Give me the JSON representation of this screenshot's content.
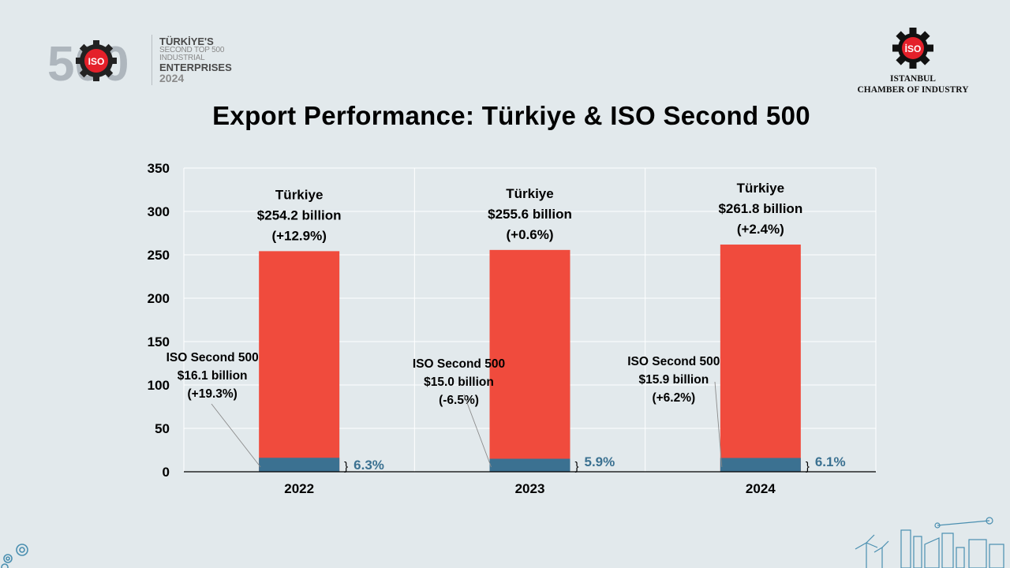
{
  "header": {
    "left_logo": {
      "number": "500",
      "badge": "ISO",
      "line1": "TÜRKİYE'S",
      "line2": "SECOND TOP 500 INDUSTRIAL",
      "line3": "ENTERPRISES",
      "line4": "2024"
    },
    "right_logo": {
      "badge": "İSO",
      "line1": "ISTANBUL",
      "line2": "CHAMBER OF INDUSTRY"
    }
  },
  "colors": {
    "turkiye": "#f04b3d",
    "iso": "#3b7191",
    "pct_text": "#3b7191",
    "background": "#e2e9ec"
  },
  "chart_data": {
    "type": "bar",
    "stacked": true,
    "title": "Export Performance: Türkiye & ISO Second 500",
    "categories": [
      "2022",
      "2023",
      "2024"
    ],
    "ylim": [
      0,
      350
    ],
    "yticks": [
      0,
      50,
      100,
      150,
      200,
      250,
      300,
      350
    ],
    "grid": true,
    "series": [
      {
        "name": "ISO Second 500",
        "values": [
          16.1,
          15.0,
          15.9
        ]
      },
      {
        "name": "Türkiye",
        "values": [
          254.2,
          255.6,
          261.8
        ]
      }
    ],
    "turkiye_labels": [
      {
        "name": "Türkiye",
        "value": "$254.2 billion",
        "change": "(+12.9%)"
      },
      {
        "name": "Türkiye",
        "value": "$255.6 billion",
        "change": "(+0.6%)"
      },
      {
        "name": "Türkiye",
        "value": "$261.8 billion",
        "change": "(+2.4%)"
      }
    ],
    "iso_labels": [
      {
        "name": "ISO Second 500",
        "value": "$16.1 billion",
        "change": "(+19.3%)"
      },
      {
        "name": "ISO Second 500",
        "value": "$15.0 billion",
        "change": "(-6.5%)"
      },
      {
        "name": "ISO Second 500",
        "value": "$15.9 billion",
        "change": "(+6.2%)"
      }
    ],
    "share_labels": [
      "6.3%",
      "5.9%",
      "6.1%"
    ]
  }
}
